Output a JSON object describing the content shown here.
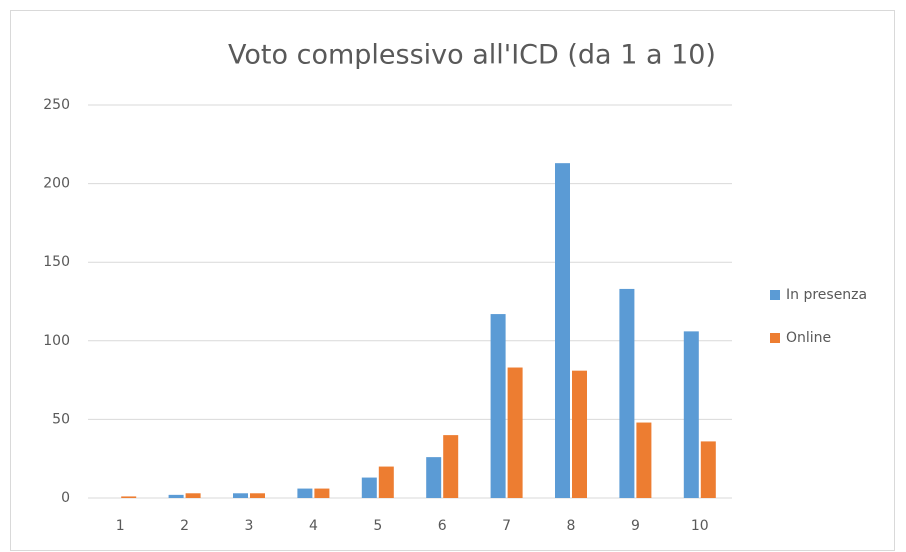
{
  "chart_data": {
    "type": "bar",
    "title": "Voto complessivo all'ICD (da 1 a 10)",
    "categories": [
      "1",
      "2",
      "3",
      "4",
      "5",
      "6",
      "7",
      "8",
      "9",
      "10"
    ],
    "series": [
      {
        "name": "In presenza",
        "color": "#5b9bd5",
        "values": [
          0,
          2,
          3,
          6,
          13,
          26,
          117,
          213,
          133,
          106
        ]
      },
      {
        "name": "Online",
        "color": "#ed7d31",
        "values": [
          1,
          3,
          3,
          6,
          20,
          40,
          83,
          81,
          48,
          36
        ]
      }
    ],
    "ylim": [
      0,
      250
    ],
    "yticks": [
      0,
      50,
      100,
      150,
      200,
      250
    ],
    "grid": true,
    "legend": "right"
  }
}
